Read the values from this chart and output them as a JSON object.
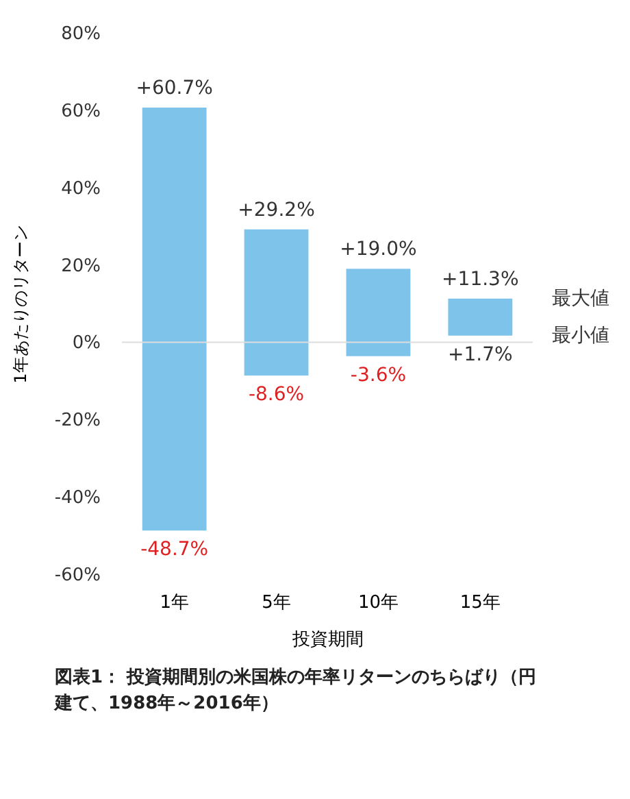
{
  "chart_data": {
    "type": "bar",
    "categories": [
      "1年",
      "5年",
      "10年",
      "15年"
    ],
    "base": [
      -48.7,
      -8.6,
      -3.6,
      1.7
    ],
    "values": [
      109.4,
      37.8,
      22.6,
      9.6
    ],
    "color": "#7dc3ea",
    "xlabel": "投資期間",
    "ylabel": "1年あたりのリターン",
    "ylim": [
      -60,
      80
    ],
    "yticks": [
      {
        "value": -60,
        "label": "-60%"
      },
      {
        "value": -40,
        "label": "-40%"
      },
      {
        "value": -20,
        "label": "-20%"
      },
      {
        "value": 0,
        "label": "0%"
      },
      {
        "value": 20,
        "label": "20%"
      },
      {
        "value": 40,
        "label": "40%"
      },
      {
        "value": 60,
        "label": "60%"
      },
      {
        "value": 80,
        "label": "80%"
      }
    ],
    "grid": false,
    "ref_lines": [
      {
        "axis": "y",
        "value": 0,
        "color": "#dddddd"
      }
    ],
    "annotations": [
      {
        "text": "+60.7%",
        "x": "1年",
        "y": 60.7
      },
      {
        "text": "-48.7%",
        "x": "1年",
        "y": -48.7
      },
      {
        "text": "+29.2%",
        "x": "5年",
        "y": 29.2
      },
      {
        "text": "-8.6%",
        "x": "5年",
        "y": -8.6
      },
      {
        "text": "+19.0%",
        "x": "10年",
        "y": 19.0
      },
      {
        "text": "-3.6%",
        "x": "10年",
        "y": -3.6
      },
      {
        "text": "+11.3%",
        "x": "15年",
        "y": 11.3
      },
      {
        "text": "+1.7%",
        "x": "15年",
        "y": 1.7
      },
      "最大値",
      "最小値",
      "図表1： 投資期間別の米国株の年率リターンのちらばり（円建て、1988年～2016年）"
    ]
  }
}
